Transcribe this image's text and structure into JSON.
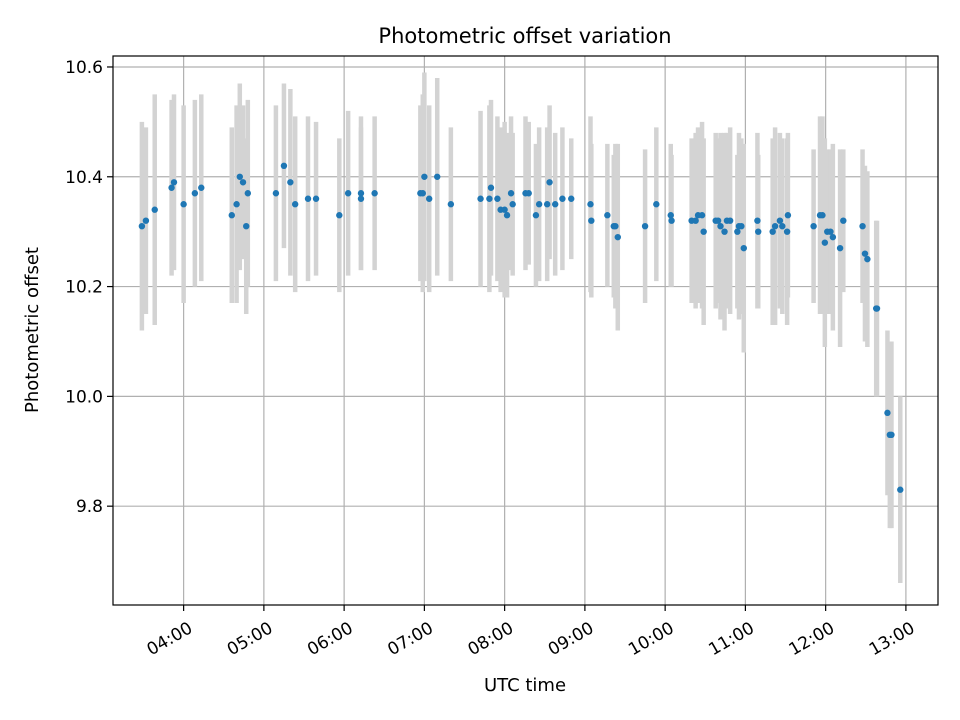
{
  "chart_data": {
    "type": "scatter",
    "title": "Photometric offset variation",
    "xlabel": "UTC time",
    "ylabel": "Photometric offset",
    "xlim": [
      3.12,
      13.4
    ],
    "ylim": [
      9.62,
      10.62
    ],
    "grid": true,
    "x_ticks": [
      {
        "value": 4,
        "label": "04:00"
      },
      {
        "value": 5,
        "label": "05:00"
      },
      {
        "value": 6,
        "label": "06:00"
      },
      {
        "value": 7,
        "label": "07:00"
      },
      {
        "value": 8,
        "label": "08:00"
      },
      {
        "value": 9,
        "label": "09:00"
      },
      {
        "value": 10,
        "label": "10:00"
      },
      {
        "value": 11,
        "label": "11:00"
      },
      {
        "value": 12,
        "label": "12:00"
      },
      {
        "value": 13,
        "label": "13:00"
      }
    ],
    "y_ticks": [
      {
        "value": 9.8,
        "label": "9.8"
      },
      {
        "value": 10.0,
        "label": "10.0"
      },
      {
        "value": 10.2,
        "label": "10.2"
      },
      {
        "value": 10.4,
        "label": "10.4"
      },
      {
        "value": 10.6,
        "label": "10.6"
      }
    ],
    "colors": {
      "point": "#1f77b4",
      "errorbar": "#d3d3d3",
      "grid": "#b0b0b0",
      "axis": "#000000"
    },
    "series": [
      {
        "name": "Photometric offset",
        "x": [
          3.48,
          3.53,
          3.64,
          3.85,
          3.88,
          4.0,
          4.14,
          4.22,
          4.6,
          4.66,
          4.7,
          4.74,
          4.78,
          4.8,
          5.15,
          5.25,
          5.33,
          5.39,
          5.55,
          5.65,
          5.94,
          6.05,
          6.21,
          6.21,
          6.38,
          6.95,
          6.98,
          7.0,
          7.06,
          7.16,
          7.33,
          7.7,
          7.81,
          7.83,
          7.91,
          7.95,
          8.0,
          8.03,
          8.08,
          8.1,
          8.26,
          8.3,
          8.39,
          8.43,
          8.53,
          8.56,
          8.63,
          8.72,
          8.83,
          9.07,
          9.08,
          9.28,
          9.36,
          9.38,
          9.41,
          9.75,
          9.89,
          10.07,
          10.08,
          10.33,
          10.38,
          10.41,
          10.46,
          10.48,
          10.63,
          10.66,
          10.69,
          10.74,
          10.77,
          10.81,
          10.9,
          10.92,
          10.95,
          10.98,
          11.15,
          11.16,
          11.34,
          11.37,
          11.43,
          11.46,
          11.52,
          11.53,
          11.85,
          11.93,
          11.96,
          11.99,
          12.02,
          12.06,
          12.09,
          12.18,
          12.22,
          12.46,
          12.49,
          12.52,
          12.63,
          12.64,
          12.77,
          12.8,
          12.82,
          12.93
        ],
        "y": [
          10.31,
          10.32,
          10.34,
          10.38,
          10.39,
          10.35,
          10.37,
          10.38,
          10.33,
          10.35,
          10.4,
          10.39,
          10.31,
          10.37,
          10.37,
          10.42,
          10.39,
          10.35,
          10.36,
          10.36,
          10.33,
          10.37,
          10.37,
          10.36,
          10.37,
          10.37,
          10.37,
          10.4,
          10.36,
          10.4,
          10.35,
          10.36,
          10.36,
          10.38,
          10.36,
          10.34,
          10.34,
          10.33,
          10.37,
          10.35,
          10.37,
          10.37,
          10.33,
          10.35,
          10.35,
          10.39,
          10.35,
          10.36,
          10.36,
          10.35,
          10.32,
          10.33,
          10.31,
          10.31,
          10.29,
          10.31,
          10.35,
          10.33,
          10.32,
          10.32,
          10.32,
          10.33,
          10.33,
          10.3,
          10.32,
          10.32,
          10.31,
          10.3,
          10.32,
          10.32,
          10.3,
          10.31,
          10.31,
          10.27,
          10.32,
          10.3,
          10.3,
          10.31,
          10.32,
          10.31,
          10.3,
          10.33,
          10.31,
          10.33,
          10.33,
          10.28,
          10.3,
          10.3,
          10.29,
          10.27,
          10.32,
          10.31,
          10.26,
          10.25,
          10.16,
          10.16,
          9.97,
          9.93,
          9.93,
          9.83
        ],
        "err": [
          0.19,
          0.17,
          0.21,
          0.16,
          0.16,
          0.18,
          0.17,
          0.17,
          0.16,
          0.18,
          0.17,
          0.14,
          0.16,
          0.17,
          0.16,
          0.15,
          0.17,
          0.16,
          0.15,
          0.14,
          0.14,
          0.15,
          0.14,
          0.13,
          0.14,
          0.16,
          0.18,
          0.19,
          0.17,
          0.18,
          0.14,
          0.16,
          0.17,
          0.16,
          0.15,
          0.15,
          0.16,
          0.15,
          0.14,
          0.13,
          0.14,
          0.13,
          0.13,
          0.14,
          0.14,
          0.14,
          0.13,
          0.13,
          0.11,
          0.16,
          0.14,
          0.13,
          0.13,
          0.15,
          0.17,
          0.14,
          0.14,
          0.13,
          0.12,
          0.15,
          0.16,
          0.16,
          0.17,
          0.17,
          0.16,
          0.15,
          0.17,
          0.18,
          0.16,
          0.17,
          0.14,
          0.17,
          0.16,
          0.19,
          0.16,
          0.14,
          0.17,
          0.18,
          0.16,
          0.16,
          0.17,
          0.15,
          0.14,
          0.18,
          0.18,
          0.19,
          0.15,
          0.15,
          0.17,
          0.18,
          0.13,
          0.14,
          0.16,
          0.16,
          0.16,
          0.16,
          0.15,
          0.17,
          0.17,
          0.17
        ]
      }
    ]
  }
}
